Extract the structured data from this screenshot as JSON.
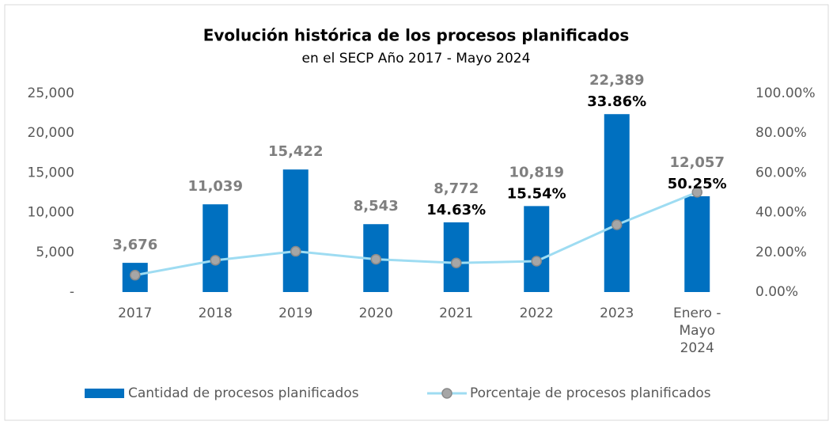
{
  "chart_data": {
    "type": "bar_line",
    "title": "Evolución histórica de los procesos planificados",
    "subtitle": "en el SECP Año 2017 - Mayo 2024",
    "categories": [
      "2017",
      "2018",
      "2019",
      "2020",
      "2021",
      "2022",
      "2023",
      "Enero - Mayo 2024"
    ],
    "series": [
      {
        "name": "Cantidad de procesos planificados",
        "type": "bar",
        "color": "#0070c0",
        "values": [
          3676,
          11039,
          15422,
          8543,
          8772,
          10819,
          22389,
          12057
        ],
        "value_labels": [
          "3,676",
          "11,039",
          "15,422",
          "8,543",
          "8,772",
          "10,819",
          "22,389",
          "12,057"
        ]
      },
      {
        "name": "Porcentaje de procesos planificados",
        "type": "line",
        "axis": "y2",
        "color": "#9edcf2",
        "values": [
          8.5,
          16,
          20.5,
          16.5,
          14.63,
          15.54,
          33.86,
          50.25
        ],
        "value_labels": [
          null,
          null,
          null,
          null,
          "14.63%",
          "15.54%",
          "33.86%",
          "50.25%"
        ]
      }
    ],
    "ylim": [
      0,
      25000
    ],
    "yticks": [
      {
        "value": 0,
        "label": "-"
      },
      {
        "value": 5000,
        "label": "5,000"
      },
      {
        "value": 10000,
        "label": "10,000"
      },
      {
        "value": 15000,
        "label": "15,000"
      },
      {
        "value": 20000,
        "label": "20,000"
      },
      {
        "value": 25000,
        "label": "25,000"
      }
    ],
    "y2lim": [
      0,
      100
    ],
    "y2ticks": [
      {
        "value": 0,
        "label": "0.00%"
      },
      {
        "value": 20,
        "label": "20.00%"
      },
      {
        "value": 40,
        "label": "40.00%"
      },
      {
        "value": 60,
        "label": "60.00%"
      },
      {
        "value": 80,
        "label": "80.00%"
      },
      {
        "value": 100,
        "label": "100.00%"
      }
    ],
    "legend": "bottom"
  }
}
